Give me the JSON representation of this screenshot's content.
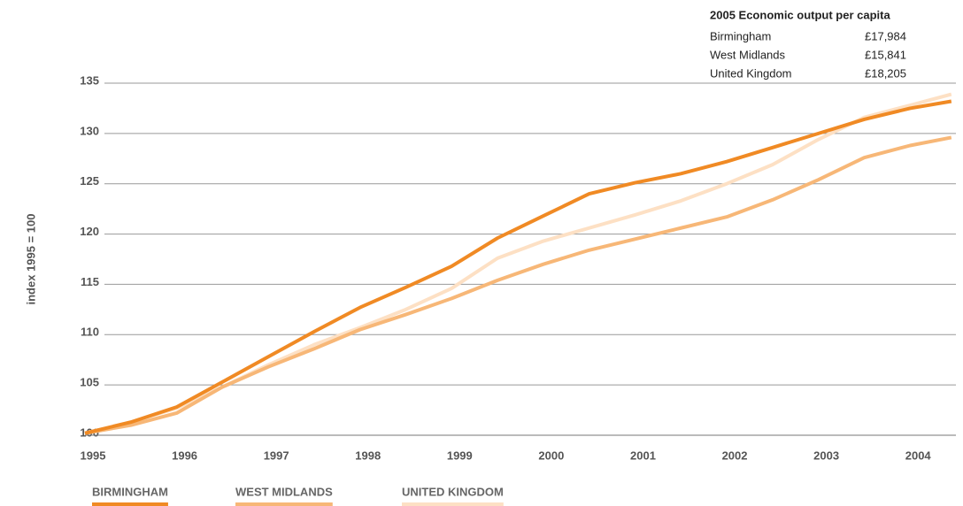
{
  "chart_data": {
    "type": "line",
    "y_label": "index 1995 = 100",
    "x": [
      1995,
      1995.5,
      1996,
      1996.5,
      1997,
      1997.5,
      1998,
      1998.5,
      1999,
      1999.5,
      2000,
      2000.5,
      2001,
      2001.5,
      2002,
      2002.5,
      2003,
      2003.5,
      2004,
      2004.45
    ],
    "series": [
      {
        "name": "BIRMINGHAM",
        "color": "#f08a24",
        "values": [
          100.2,
          101.3,
          102.8,
          105.3,
          107.8,
          110.3,
          112.7,
          114.7,
          116.8,
          119.6,
          121.8,
          124.0,
          125.1,
          126.0,
          127.2,
          128.6,
          130.0,
          131.4,
          132.5,
          133.2
        ]
      },
      {
        "name": "WEST MIDLANDS",
        "color": "#f7b777",
        "values": [
          100.2,
          101.0,
          102.2,
          104.8,
          106.8,
          108.6,
          110.5,
          112.0,
          113.6,
          115.4,
          117.0,
          118.4,
          119.5,
          120.6,
          121.7,
          123.4,
          125.4,
          127.6,
          128.8,
          129.6
        ]
      },
      {
        "name": "UNITED KINGDOM",
        "color": "#fde0c4",
        "values": [
          100.2,
          101.3,
          102.7,
          104.8,
          107.0,
          109.0,
          110.7,
          112.5,
          114.6,
          117.6,
          119.3,
          120.6,
          121.9,
          123.3,
          125.0,
          126.9,
          129.4,
          131.6,
          132.8,
          133.9
        ]
      }
    ],
    "xlim": [
      1995,
      2004.5
    ],
    "xticks": [
      1995,
      1996,
      1997,
      1998,
      1999,
      2000,
      2001,
      2002,
      2003,
      2004
    ],
    "ylim": [
      100,
      135
    ],
    "yticks": [
      100,
      105,
      110,
      115,
      120,
      125,
      130,
      135
    ],
    "grid": true
  },
  "table": {
    "title": "2005 Economic output per capita",
    "rows": [
      [
        "Birmingham",
        "£17,984"
      ],
      [
        "West Midlands",
        "£15,841"
      ],
      [
        "United Kingdom",
        "£18,205"
      ]
    ]
  }
}
